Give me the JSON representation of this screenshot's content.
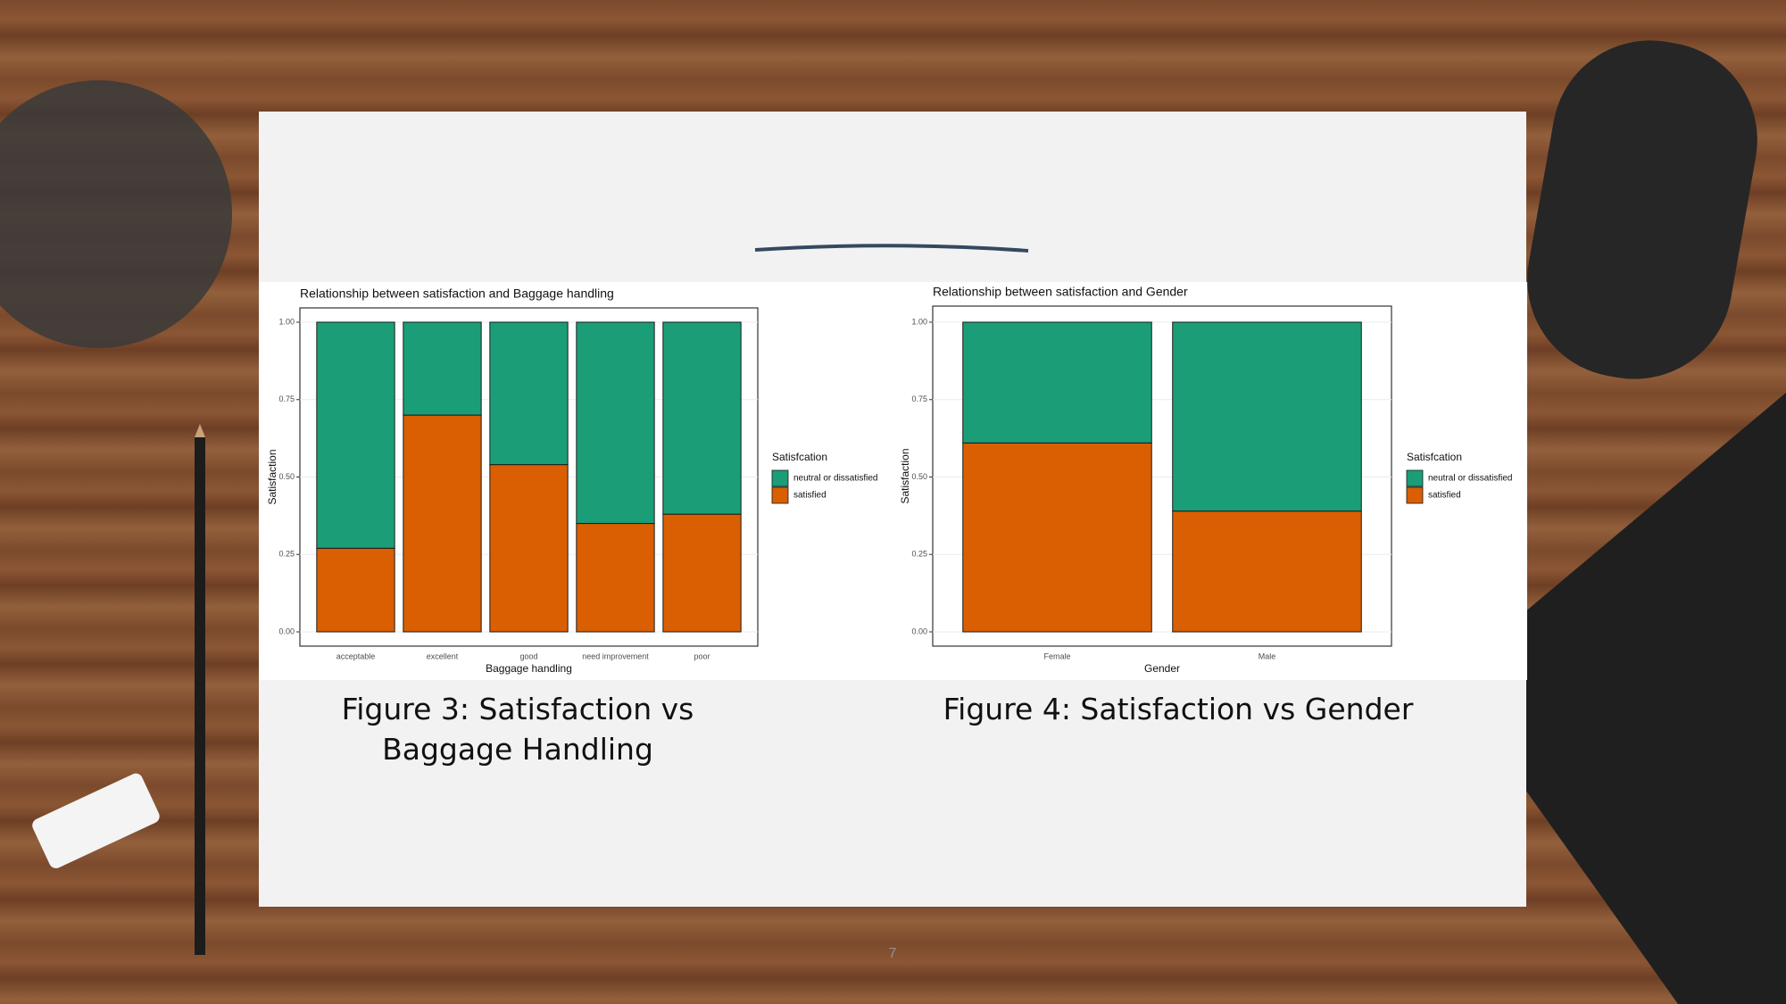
{
  "chart_data": [
    {
      "type": "bar",
      "stacked": true,
      "title": "Relationship between satisfaction and Baggage handling",
      "x_label": "Baggage handling",
      "y_label": "Satisfaction",
      "legend_title": "Satisfcation",
      "categories": [
        "acceptable",
        "excellent",
        "good",
        "need improvement",
        "poor"
      ],
      "series": [
        {
          "name": "neutral or dissatisfied",
          "color": "#1b9e77",
          "values": [
            0.73,
            0.3,
            0.46,
            0.65,
            0.62
          ]
        },
        {
          "name": "satisfied",
          "color": "#d95f02",
          "values": [
            0.27,
            0.7,
            0.54,
            0.35,
            0.38
          ]
        }
      ],
      "ylim": [
        0,
        1
      ],
      "yticks": [
        {
          "value": 0,
          "label": "0.00"
        },
        {
          "value": 0.25,
          "label": "0.25"
        },
        {
          "value": 0.5,
          "label": "0.50"
        },
        {
          "value": 0.75,
          "label": "0.75"
        },
        {
          "value": 1,
          "label": "1.00"
        }
      ],
      "grid": true,
      "legend": "right"
    },
    {
      "type": "bar",
      "stacked": true,
      "title": "Relationship between satisfaction and Gender",
      "x_label": "Gender",
      "y_label": "Satisfaction",
      "legend_title": "Satisfcation",
      "categories": [
        "Female",
        "Male"
      ],
      "series": [
        {
          "name": "neutral or dissatisfied",
          "color": "#1b9e77",
          "values": [
            0.39,
            0.61
          ]
        },
        {
          "name": "satisfied",
          "color": "#d95f02",
          "values": [
            0.61,
            0.39
          ]
        }
      ],
      "ylim": [
        0,
        1
      ],
      "yticks": [
        {
          "value": 0,
          "label": "0.00"
        },
        {
          "value": 0.25,
          "label": "0.25"
        },
        {
          "value": 0.5,
          "label": "0.50"
        },
        {
          "value": 0.75,
          "label": "0.75"
        },
        {
          "value": 1,
          "label": "1.00"
        }
      ],
      "grid": true,
      "legend": "right"
    }
  ],
  "captions": [
    "Figure 3: Satisfaction vs Baggage Handling",
    "Figure 4: Satisfaction vs Gender"
  ],
  "page_number": "7"
}
